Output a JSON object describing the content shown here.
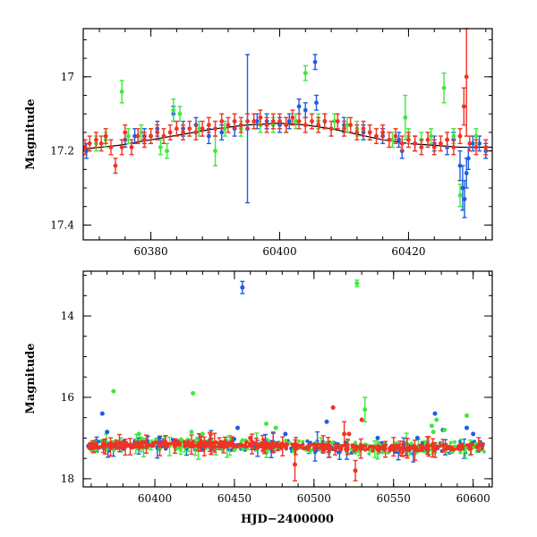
{
  "colors": {
    "blue": "#1e5fe0",
    "green": "#3ee83e",
    "red": "#ef3324",
    "fit": "#000000",
    "frame": "#000000"
  },
  "chart_data": [
    {
      "type": "scatter",
      "panel": "top",
      "title": "",
      "xlabel": "",
      "ylabel": "Magnitude",
      "xlim": [
        60369.5,
        60433
      ],
      "ylim": [
        17.44,
        16.87
      ],
      "y_inverted": true,
      "x_ticks": [
        60380,
        60400,
        60420
      ],
      "x_ticklabels": [
        "60380",
        "60400",
        "60420"
      ],
      "y_ticks": [
        17.0,
        17.2,
        17.4
      ],
      "y_ticklabels": [
        "17",
        "17.2",
        "17.4"
      ],
      "fit_curve": {
        "x": [
          60369.5,
          60375,
          60380,
          60385,
          60390,
          60395,
          60400,
          60404,
          60408,
          60412,
          60416,
          60420,
          60424,
          60428,
          60433
        ],
        "y": [
          17.195,
          17.185,
          17.17,
          17.155,
          17.14,
          17.13,
          17.125,
          17.13,
          17.14,
          17.155,
          17.17,
          17.18,
          17.185,
          17.19,
          17.19
        ]
      },
      "series": [
        {
          "color": "blue",
          "points": [
            [
              60370.0,
              17.2,
              0.02
            ],
            [
              60376.0,
              17.17,
              0.02
            ],
            [
              60377.5,
              17.16,
              0.02
            ],
            [
              60379.0,
              17.16,
              0.02
            ],
            [
              60381.0,
              17.14,
              0.02
            ],
            [
              60383.5,
              17.1,
              0.02
            ],
            [
              60385.0,
              17.14,
              0.02
            ],
            [
              60387.0,
              17.13,
              0.02
            ],
            [
              60389.0,
              17.16,
              0.02
            ],
            [
              60391.0,
              17.15,
              0.02
            ],
            [
              60393.0,
              17.14,
              0.02
            ],
            [
              60395.0,
              17.14,
              0.2
            ],
            [
              60396.5,
              17.12,
              0.02
            ],
            [
              60398.0,
              17.12,
              0.02
            ],
            [
              60400.0,
              17.13,
              0.02
            ],
            [
              60401.5,
              17.12,
              0.02
            ],
            [
              60403.0,
              17.08,
              0.02
            ],
            [
              60404.0,
              17.09,
              0.02
            ],
            [
              60405.5,
              16.96,
              0.02
            ],
            [
              60405.7,
              17.07,
              0.02
            ],
            [
              60407.0,
              17.12,
              0.02
            ],
            [
              60410.0,
              17.13,
              0.02
            ],
            [
              60413.0,
              17.15,
              0.02
            ],
            [
              60416.0,
              17.16,
              0.02
            ],
            [
              60418.5,
              17.17,
              0.02
            ],
            [
              60419.0,
              17.2,
              0.02
            ],
            [
              60421.0,
              17.18,
              0.02
            ],
            [
              60424.0,
              17.18,
              0.02
            ],
            [
              60426.0,
              17.19,
              0.02
            ],
            [
              60427.0,
              17.17,
              0.02
            ],
            [
              60428.0,
              17.24,
              0.04
            ],
            [
              60428.4,
              17.3,
              0.06
            ],
            [
              60428.7,
              17.33,
              0.05
            ],
            [
              60429.0,
              17.26,
              0.04
            ],
            [
              60429.3,
              17.22,
              0.03
            ],
            [
              60430.0,
              17.18,
              0.02
            ],
            [
              60431.0,
              17.18,
              0.02
            ],
            [
              60432.0,
              17.2,
              0.02
            ]
          ]
        },
        {
          "color": "green",
          "points": [
            [
              60371.5,
              17.18,
              0.02
            ],
            [
              60373.0,
              17.17,
              0.02
            ],
            [
              60375.5,
              17.04,
              0.03
            ],
            [
              60376.5,
              17.16,
              0.02
            ],
            [
              60378.5,
              17.15,
              0.02
            ],
            [
              60380.0,
              17.16,
              0.02
            ],
            [
              60381.5,
              17.19,
              0.02
            ],
            [
              60382.5,
              17.2,
              0.02
            ],
            [
              60383.5,
              17.09,
              0.03
            ],
            [
              60384.5,
              17.1,
              0.02
            ],
            [
              60387.5,
              17.14,
              0.02
            ],
            [
              60390.0,
              17.2,
              0.04
            ],
            [
              60391.5,
              17.14,
              0.02
            ],
            [
              60394.0,
              17.14,
              0.02
            ],
            [
              60397.0,
              17.13,
              0.02
            ],
            [
              60399.0,
              17.13,
              0.02
            ],
            [
              60401.0,
              17.13,
              0.02
            ],
            [
              60402.5,
              17.12,
              0.02
            ],
            [
              60404.0,
              16.99,
              0.02
            ],
            [
              60406.0,
              17.12,
              0.02
            ],
            [
              60408.5,
              17.12,
              0.02
            ],
            [
              60410.5,
              17.13,
              0.02
            ],
            [
              60412.0,
              17.14,
              0.02
            ],
            [
              60414.0,
              17.15,
              0.02
            ],
            [
              60417.5,
              17.17,
              0.02
            ],
            [
              60419.5,
              17.11,
              0.06
            ],
            [
              60420.0,
              17.16,
              0.02
            ],
            [
              60422.0,
              17.17,
              0.02
            ],
            [
              60423.5,
              17.16,
              0.02
            ],
            [
              60425.5,
              17.03,
              0.04
            ],
            [
              60427.0,
              17.16,
              0.02
            ],
            [
              60428.0,
              17.32,
              0.03
            ],
            [
              60430.5,
              17.16,
              0.02
            ]
          ]
        },
        {
          "color": "red",
          "points": [
            [
              60369.8,
              17.19,
              0.02
            ],
            [
              60370.5,
              17.18,
              0.02
            ],
            [
              60371.5,
              17.17,
              0.02
            ],
            [
              60372.3,
              17.18,
              0.02
            ],
            [
              60373.0,
              17.16,
              0.02
            ],
            [
              60373.8,
              17.19,
              0.02
            ],
            [
              60374.5,
              17.24,
              0.02
            ],
            [
              60375.5,
              17.19,
              0.02
            ],
            [
              60376.0,
              17.15,
              0.02
            ],
            [
              60377.0,
              17.19,
              0.02
            ],
            [
              60378.0,
              17.16,
              0.02
            ],
            [
              60379.0,
              17.17,
              0.02
            ],
            [
              60380.0,
              17.16,
              0.02
            ],
            [
              60381.0,
              17.15,
              0.02
            ],
            [
              60382.0,
              17.16,
              0.02
            ],
            [
              60383.0,
              17.15,
              0.02
            ],
            [
              60384.0,
              17.14,
              0.02
            ],
            [
              60385.0,
              17.15,
              0.02
            ],
            [
              60386.0,
              17.14,
              0.02
            ],
            [
              60387.0,
              17.15,
              0.02
            ],
            [
              60388.0,
              17.14,
              0.02
            ],
            [
              60389.0,
              17.13,
              0.02
            ],
            [
              60390.0,
              17.14,
              0.02
            ],
            [
              60391.0,
              17.12,
              0.02
            ],
            [
              60392.0,
              17.13,
              0.02
            ],
            [
              60393.0,
              17.12,
              0.02
            ],
            [
              60394.0,
              17.13,
              0.02
            ],
            [
              60395.0,
              17.12,
              0.02
            ],
            [
              60396.0,
              17.12,
              0.02
            ],
            [
              60397.0,
              17.11,
              0.02
            ],
            [
              60398.0,
              17.13,
              0.02
            ],
            [
              60399.0,
              17.12,
              0.02
            ],
            [
              60400.0,
              17.12,
              0.02
            ],
            [
              60401.0,
              17.13,
              0.02
            ],
            [
              60402.0,
              17.11,
              0.02
            ],
            [
              60403.0,
              17.12,
              0.02
            ],
            [
              60404.0,
              17.13,
              0.02
            ],
            [
              60405.0,
              17.12,
              0.02
            ],
            [
              60406.0,
              17.13,
              0.02
            ],
            [
              60407.0,
              17.12,
              0.02
            ],
            [
              60408.0,
              17.14,
              0.02
            ],
            [
              60409.0,
              17.12,
              0.02
            ],
            [
              60410.0,
              17.14,
              0.02
            ],
            [
              60411.0,
              17.13,
              0.02
            ],
            [
              60412.0,
              17.15,
              0.02
            ],
            [
              60413.0,
              17.14,
              0.02
            ],
            [
              60414.0,
              17.15,
              0.02
            ],
            [
              60415.0,
              17.16,
              0.02
            ],
            [
              60416.0,
              17.15,
              0.02
            ],
            [
              60417.0,
              17.17,
              0.02
            ],
            [
              60418.0,
              17.16,
              0.02
            ],
            [
              60419.0,
              17.18,
              0.02
            ],
            [
              60420.0,
              17.17,
              0.02
            ],
            [
              60421.0,
              17.18,
              0.02
            ],
            [
              60422.0,
              17.19,
              0.02
            ],
            [
              60423.0,
              17.17,
              0.02
            ],
            [
              60424.0,
              17.19,
              0.02
            ],
            [
              60425.0,
              17.18,
              0.02
            ],
            [
              60426.0,
              17.17,
              0.02
            ],
            [
              60427.0,
              17.19,
              0.02
            ],
            [
              60428.0,
              17.16,
              0.02
            ],
            [
              60428.6,
              17.08,
              0.05
            ],
            [
              60429.0,
              17.0,
              0.16
            ],
            [
              60429.5,
              17.18,
              0.02
            ],
            [
              60430.5,
              17.19,
              0.02
            ],
            [
              60432.0,
              17.19,
              0.02
            ]
          ]
        }
      ]
    },
    {
      "type": "scatter",
      "panel": "bottom",
      "title": "",
      "xlabel": "HJD−2400000",
      "ylabel": "Magnitude",
      "xlim": [
        60355,
        60612
      ],
      "ylim": [
        18.2,
        12.9
      ],
      "y_inverted": true,
      "x_ticks": [
        60400,
        60450,
        60500,
        60550,
        60600
      ],
      "x_ticklabels": [
        "60400",
        "60450",
        "60500",
        "60550",
        "60600"
      ],
      "y_ticks": [
        14,
        16,
        18
      ],
      "y_ticklabels": [
        "14",
        "16",
        "18"
      ],
      "outliers": {
        "blue": [
          [
            60455,
            13.3,
            0.15
          ],
          [
            60367,
            16.4,
            0
          ],
          [
            60370,
            16.85,
            0
          ],
          [
            60452,
            16.75,
            0
          ],
          [
            60482,
            16.9,
            0
          ],
          [
            60508,
            16.6,
            0
          ],
          [
            60576,
            16.4,
            0
          ],
          [
            60581,
            16.8,
            0
          ],
          [
            60596,
            16.75,
            0
          ],
          [
            60600,
            16.9,
            0
          ],
          [
            60403,
            17.0,
            0
          ],
          [
            60540,
            17.0,
            0
          ],
          [
            60565,
            17.0,
            0
          ]
        ],
        "green": [
          [
            60527,
            13.2,
            0.08
          ],
          [
            60374,
            15.85,
            0
          ],
          [
            60424,
            15.9,
            0
          ],
          [
            60532,
            16.3,
            0.3
          ],
          [
            60577,
            16.55,
            0
          ],
          [
            60582,
            16.8,
            0
          ],
          [
            60596,
            16.45,
            0
          ],
          [
            60423,
            16.85,
            0
          ],
          [
            60470,
            16.65,
            0
          ],
          [
            60476,
            16.75,
            0
          ],
          [
            60430,
            16.9,
            0
          ],
          [
            60390,
            16.9,
            0
          ],
          [
            60574,
            16.7,
            0
          ],
          [
            60575,
            16.85,
            0
          ]
        ],
        "red": [
          [
            60512,
            16.25,
            0
          ],
          [
            60530,
            16.55,
            0
          ],
          [
            60522,
            16.9,
            0
          ],
          [
            60488,
            17.65,
            0.4
          ],
          [
            60526,
            17.8,
            0.25
          ],
          [
            60519,
            16.9,
            0.3
          ],
          [
            60460,
            17.0,
            0
          ]
        ]
      }
    }
  ]
}
